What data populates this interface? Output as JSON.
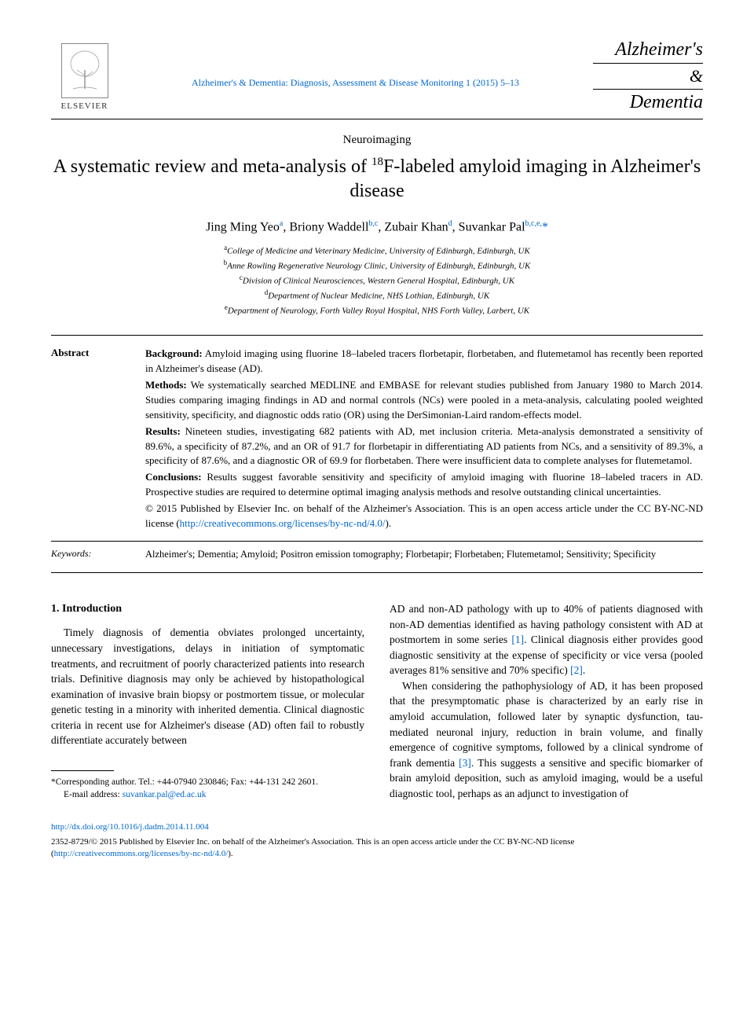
{
  "header": {
    "publisher": "ELSEVIER",
    "journal_ref": "Alzheimer's & Dementia: Diagnosis, Assessment & Disease Monitoring 1 (2015) 5–13",
    "journal_name_1": "Alzheimer's",
    "journal_name_amp": "&",
    "journal_name_2": "Dementia"
  },
  "article": {
    "section": "Neuroimaging",
    "title_pre": "A systematic review and meta-analysis of ",
    "title_sup": "18",
    "title_post": "F-labeled amyloid imaging in Alzheimer's disease",
    "authors_html": "Jing Ming Yeo<sup>a</sup>, Briony Waddell<sup>b,c</sup>, Zubair Khan<sup>d</sup>, Suvankar Pal<sup>b,c,e,</sup><span class=\"star\">*</span>"
  },
  "affiliations": [
    {
      "sup": "a",
      "text": "College of Medicine and Veterinary Medicine, University of Edinburgh, Edinburgh, UK"
    },
    {
      "sup": "b",
      "text": "Anne Rowling Regenerative Neurology Clinic, University of Edinburgh, Edinburgh, UK"
    },
    {
      "sup": "c",
      "text": "Division of Clinical Neurosciences, Western General Hospital, Edinburgh, UK"
    },
    {
      "sup": "d",
      "text": "Department of Nuclear Medicine, NHS Lothian, Edinburgh, UK"
    },
    {
      "sup": "e",
      "text": "Department of Neurology, Forth Valley Royal Hospital, NHS Forth Valley, Larbert, UK"
    }
  ],
  "abstract": {
    "label": "Abstract",
    "background_label": "Background:",
    "background": " Amyloid imaging using fluorine 18–labeled tracers florbetapir, florbetaben, and flutemetamol has recently been reported in Alzheimer's disease (AD).",
    "methods_label": "Methods:",
    "methods": " We systematically searched MEDLINE and EMBASE for relevant studies published from January 1980 to March 2014. Studies comparing imaging findings in AD and normal controls (NCs) were pooled in a meta-analysis, calculating pooled weighted sensitivity, specificity, and diagnostic odds ratio (OR) using the DerSimonian-Laird random-effects model.",
    "results_label": "Results:",
    "results": " Nineteen studies, investigating 682 patients with AD, met inclusion criteria. Meta-analysis demonstrated a sensitivity of 89.6%, a specificity of 87.2%, and an OR of 91.7 for florbetapir in differentiating AD patients from NCs, and a sensitivity of 89.3%, a specificity of 87.6%, and a diagnostic OR of 69.9 for florbetaben. There were insufficient data to complete analyses for flutemetamol.",
    "conclusions_label": "Conclusions:",
    "conclusions": " Results suggest favorable sensitivity and specificity of amyloid imaging with fluorine 18–labeled tracers in AD. Prospective studies are required to determine optimal imaging analysis methods and resolve outstanding clinical uncertainties.",
    "copyright": "© 2015 Published by Elsevier Inc. on behalf of the Alzheimer's Association. This is an open access article under the CC BY-NC-ND license (",
    "license_url": "http://creativecommons.org/licenses/by-nc-nd/4.0/",
    "copyright_close": ")."
  },
  "keywords": {
    "label": "Keywords:",
    "text": "Alzheimer's; Dementia; Amyloid; Positron emission tomography; Florbetapir; Florbetaben; Flutemetamol; Sensitivity; Specificity"
  },
  "body": {
    "intro_heading": "1. Introduction",
    "col1_p1": "Timely diagnosis of dementia obviates prolonged uncertainty, unnecessary investigations, delays in initiation of symptomatic treatments, and recruitment of poorly characterized patients into research trials. Definitive diagnosis may only be achieved by histopathological examination of invasive brain biopsy or postmortem tissue, or molecular genetic testing in a minority with inherited dementia. Clinical diagnostic criteria in recent use for Alzheimer's disease (AD) often fail to robustly differentiate accurately between",
    "col2_p1_pre": "AD and non-AD pathology with up to 40% of patients diagnosed with non-AD dementias identified as having pathology consistent with AD at postmortem in some series ",
    "col2_p1_ref1": "[1]",
    "col2_p1_mid": ". Clinical diagnosis either provides good diagnostic sensitivity at the expense of specificity or vice versa (pooled averages 81% sensitive and 70% specific) ",
    "col2_p1_ref2": "[2]",
    "col2_p1_end": ".",
    "col2_p2_pre": "When considering the pathophysiology of AD, it has been proposed that the presymptomatic phase is characterized by an early rise in amyloid accumulation, followed later by synaptic dysfunction, tau-mediated neuronal injury, reduction in brain volume, and finally emergence of cognitive symptoms, followed by a clinical syndrome of frank dementia ",
    "col2_p2_ref": "[3]",
    "col2_p2_end": ". This suggests a sensitive and specific biomarker of brain amyloid deposition, such as amyloid imaging, would be a useful diagnostic tool, perhaps as an adjunct to investigation of"
  },
  "footnotes": {
    "corr": "*Corresponding author. Tel.: +44-07940 230846; Fax: +44-131 242 2601.",
    "email_label": "E-mail address: ",
    "email": "suvankar.pal@ed.ac.uk"
  },
  "footer": {
    "doi": "http://dx.doi.org/10.1016/j.dadm.2014.11.004",
    "issn_copy_pre": "2352-8729/© 2015 Published by Elsevier Inc. on behalf of the Alzheimer's Association. This is an open access article under the CC BY-NC-ND license (",
    "license_url": "http://creativecommons.org/licenses/by-nc-nd/4.0/",
    "issn_copy_post": ")."
  },
  "colors": {
    "link": "#0066cc",
    "text": "#000000"
  }
}
